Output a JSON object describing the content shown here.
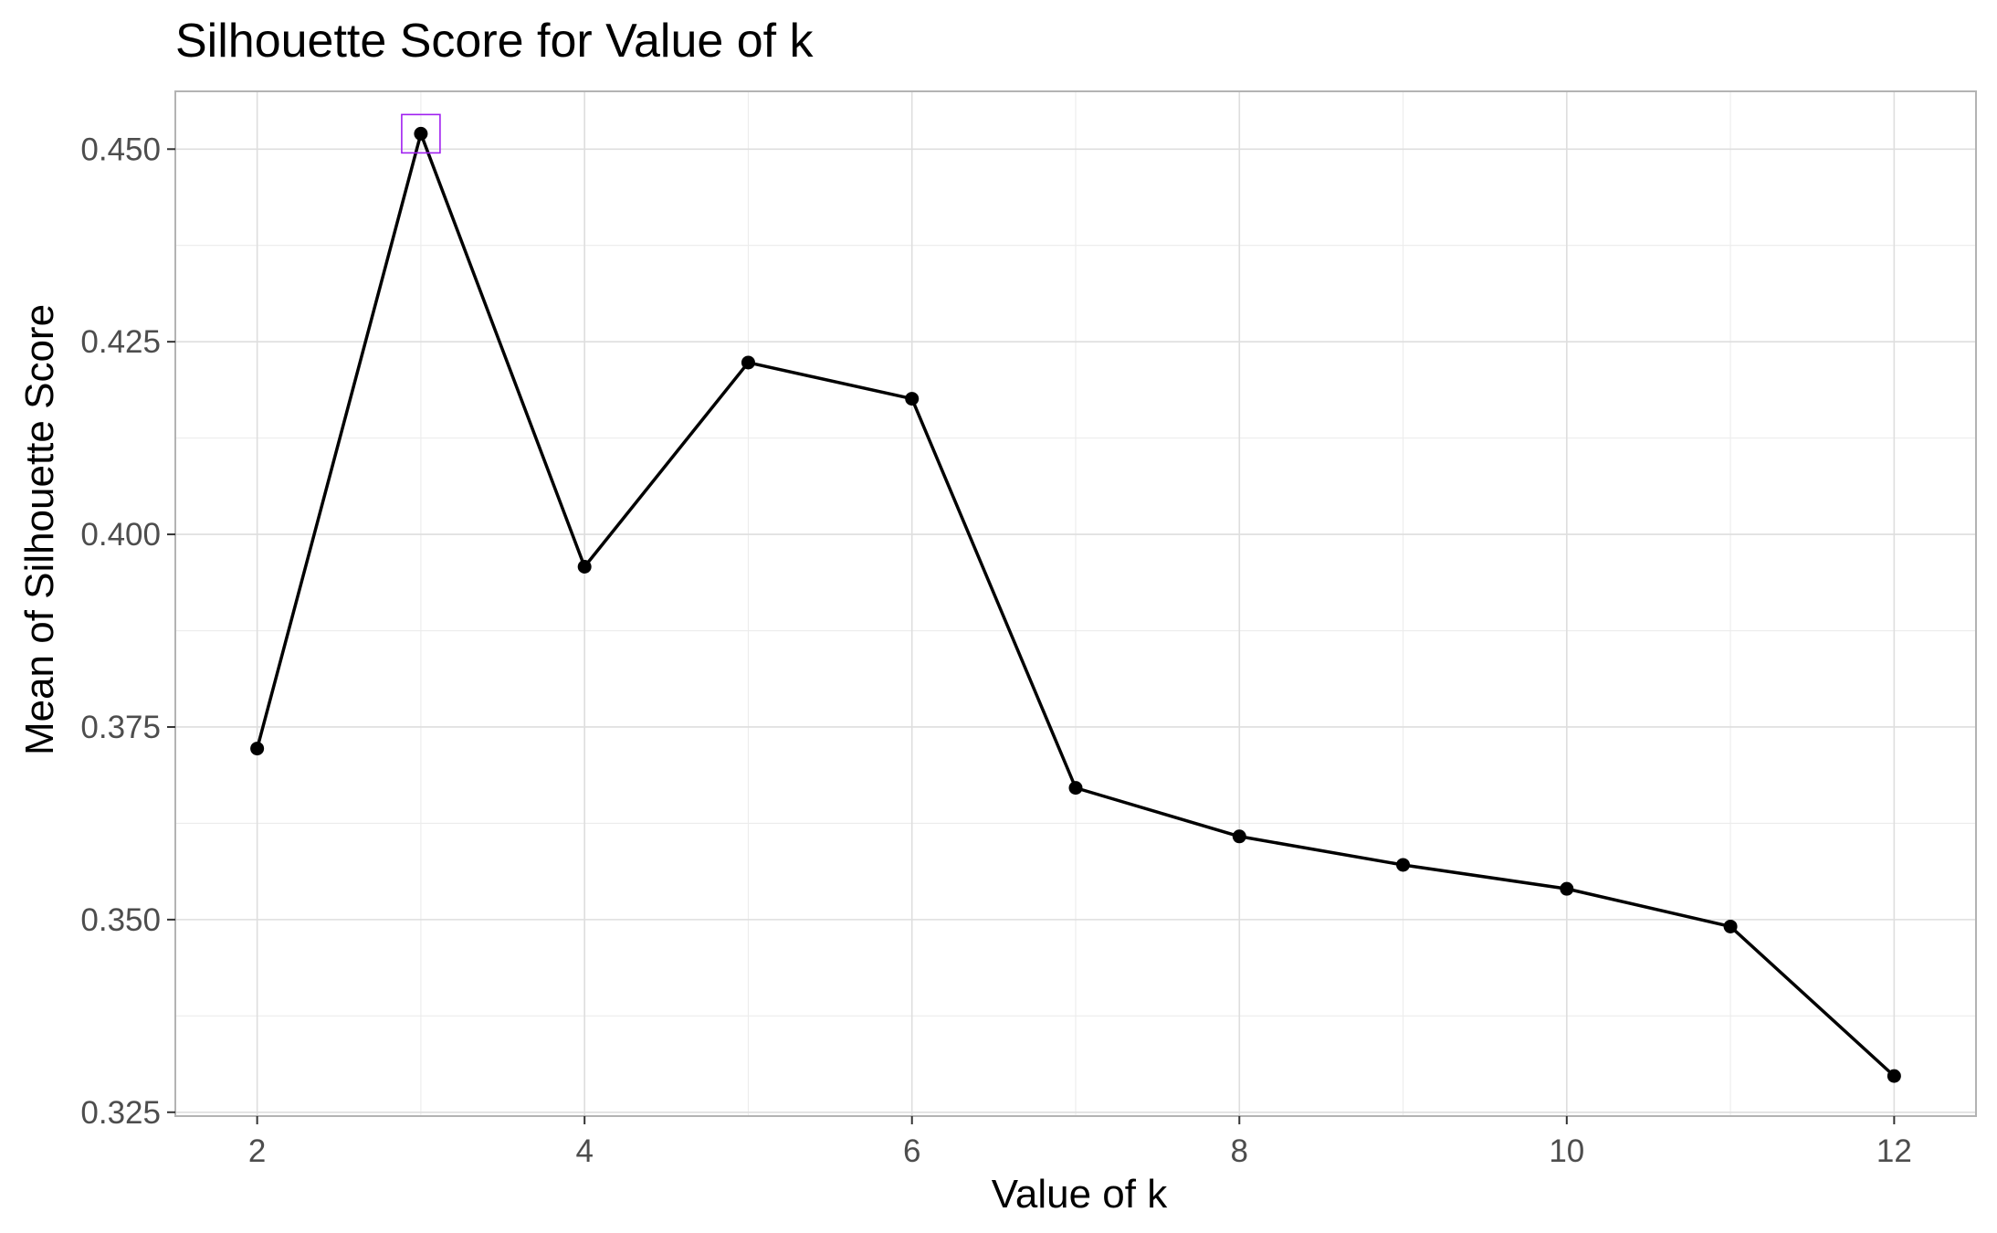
{
  "chart_data": {
    "type": "line",
    "title": "Silhouette Score for Value of k",
    "xlabel": "Value of k",
    "ylabel": "Mean of Silhouette Score",
    "x": [
      2,
      3,
      4,
      5,
      6,
      7,
      8,
      9,
      10,
      11,
      12
    ],
    "series": [
      {
        "values": [
          0.3722,
          0.452,
          0.3958,
          0.4223,
          0.4176,
          0.3671,
          0.3608,
          0.3571,
          0.354,
          0.3491,
          0.3297
        ]
      }
    ],
    "xlim": [
      1.5,
      12.5
    ],
    "ylim": [
      0.3245,
      0.4575
    ],
    "x_ticks": [
      2,
      4,
      6,
      8,
      10,
      12
    ],
    "x_tick_labels": [
      "2",
      "4",
      "6",
      "8",
      "10",
      "12"
    ],
    "y_ticks": [
      0.325,
      0.35,
      0.375,
      0.4,
      0.425,
      0.45
    ],
    "y_tick_labels": [
      "0.325",
      "0.350",
      "0.375",
      "0.400",
      "0.425",
      "0.450"
    ],
    "highlight": {
      "x": 3,
      "y": 0.452,
      "color": "#a020f0"
    },
    "grid": true,
    "legend": "none",
    "colors": {
      "line": "#000000",
      "points": "#000000",
      "highlight": "#a020f0",
      "grid": "#dedede"
    }
  }
}
